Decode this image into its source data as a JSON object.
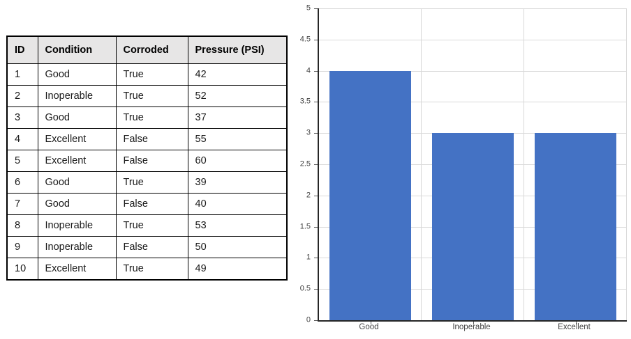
{
  "table": {
    "headers": [
      "ID",
      "Condition",
      "Corroded",
      "Pressure (PSI)"
    ],
    "rows": [
      [
        "1",
        "Good",
        "True",
        "42"
      ],
      [
        "2",
        "Inoperable",
        "True",
        "52"
      ],
      [
        "3",
        "Good",
        "True",
        "37"
      ],
      [
        "4",
        "Excellent",
        "False",
        "55"
      ],
      [
        "5",
        "Excellent",
        "False",
        "60"
      ],
      [
        "6",
        "Good",
        "True",
        "39"
      ],
      [
        "7",
        "Good",
        "False",
        "40"
      ],
      [
        "8",
        "Inoperable",
        "True",
        "53"
      ],
      [
        "9",
        "Inoperable",
        "False",
        "50"
      ],
      [
        "10",
        "Excellent",
        "True",
        "49"
      ]
    ],
    "header_bg": "#E7E6E6",
    "border_color": "#000000"
  },
  "chart_data": {
    "type": "bar",
    "categories": [
      "Good",
      "Inoperable",
      "Excellent"
    ],
    "values": [
      4,
      3,
      3
    ],
    "title": "",
    "xlabel": "",
    "ylabel": "",
    "ylim": [
      0,
      5
    ],
    "ytick_step": 0.5,
    "yticks": [
      0,
      0.5,
      1,
      1.5,
      2,
      2.5,
      3,
      3.5,
      4,
      4.5,
      5
    ],
    "grid": true,
    "legend": "none",
    "bar_color": "#4472C4",
    "gridline_color": "#D9D9D9",
    "axis_color": "#262626",
    "tick_label_color": "#404040",
    "bar_fraction_of_slot": 0.8
  }
}
